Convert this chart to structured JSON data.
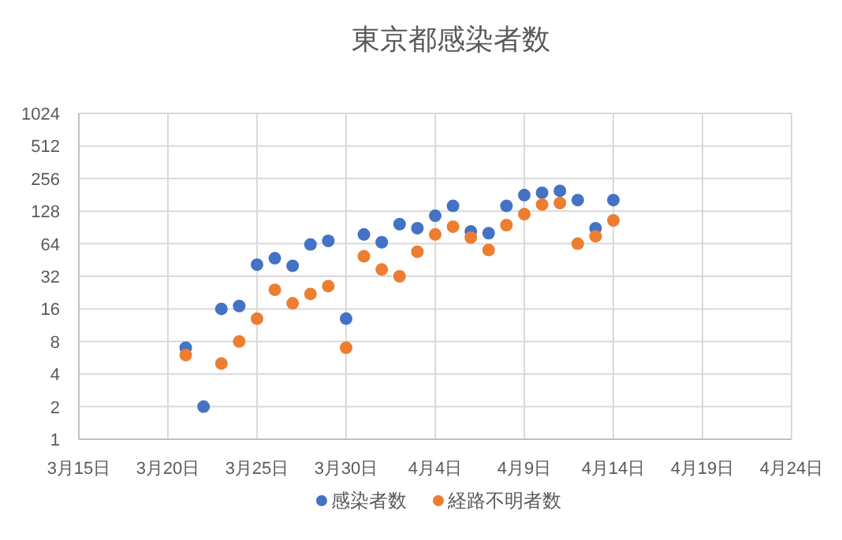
{
  "chart_data": {
    "type": "scatter",
    "title": "東京都感染者数",
    "log": "y",
    "grid": true,
    "legend": "bottom",
    "marker": "circle",
    "x": [
      "--03-21",
      "--03-22",
      "--03-23",
      "--03-24",
      "--03-25",
      "--03-26",
      "--03-27",
      "--03-28",
      "--03-29",
      "--03-30",
      "--03-31",
      "--04-01",
      "--04-02",
      "--04-03",
      "--04-04",
      "--04-05",
      "--04-06",
      "--04-07",
      "--04-08",
      "--04-09",
      "--04-10",
      "--04-11",
      "--04-12",
      "--04-13",
      "--04-14"
    ],
    "series": [
      {
        "name": "感染者数",
        "color": "#4472c4",
        "values": [
          7,
          2,
          16,
          17,
          41,
          47,
          40,
          63,
          68,
          13,
          78,
          66,
          97,
          89,
          116,
          143,
          83,
          80,
          143,
          180,
          189,
          197,
          162,
          89,
          162
        ]
      },
      {
        "name": "経路不明者数",
        "color": "#ed7d31",
        "values": [
          6,
          null,
          5,
          8,
          13,
          24,
          18,
          22,
          26,
          7,
          49,
          37,
          32,
          54,
          78,
          92,
          73,
          56,
          95,
          120,
          147,
          152,
          64,
          75,
          105
        ]
      }
    ],
    "xlim": [
      "--03-15",
      "--04-24"
    ],
    "xticks": [
      {
        "value": "--03-15",
        "label": "3月15日"
      },
      {
        "value": "--03-20",
        "label": "3月20日"
      },
      {
        "value": "--03-25",
        "label": "3月25日"
      },
      {
        "value": "--03-30",
        "label": "3月30日"
      },
      {
        "value": "--04-04",
        "label": "4月4日"
      },
      {
        "value": "--04-09",
        "label": "4月9日"
      },
      {
        "value": "--04-14",
        "label": "4月14日"
      },
      {
        "value": "--04-19",
        "label": "4月19日"
      },
      {
        "value": "--04-24",
        "label": "4月24日"
      }
    ],
    "ylim": [
      1,
      1024
    ],
    "yticks": [
      1,
      2,
      4,
      8,
      16,
      32,
      64,
      128,
      256,
      512,
      1024
    ]
  }
}
